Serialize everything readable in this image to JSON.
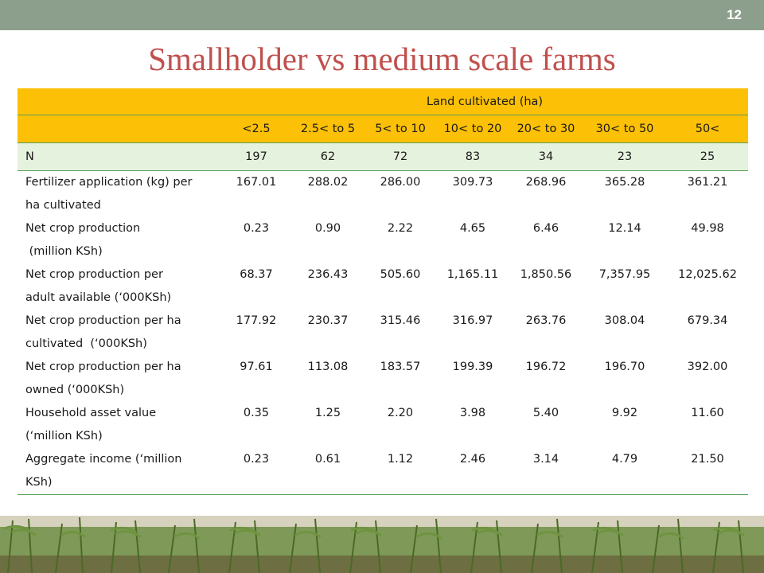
{
  "slide_number": "12",
  "title": "Smallholder vs medium scale farms",
  "table": {
    "group_header": "Land cultivated (ha)",
    "columns": [
      "<2.5",
      "2.5< to 5",
      "5< to 10",
      "10< to 20",
      "20< to 30",
      "30< to 50",
      "50<"
    ],
    "n_row": {
      "label": "N",
      "values": [
        "197",
        "62",
        "72",
        "83",
        "34",
        "23",
        "25"
      ]
    },
    "rows": [
      {
        "label_line1": "Fertilizer application (kg) per",
        "label_line2": "ha cultivated",
        "values": [
          "167.01",
          "288.02",
          "286.00",
          "309.73",
          "268.96",
          "365.28",
          "361.21"
        ]
      },
      {
        "label_line1": "Net crop production",
        "label_line2": " (million KSh)",
        "values": [
          "0.23",
          "0.90",
          "2.22",
          "4.65",
          "6.46",
          "12.14",
          "49.98"
        ]
      },
      {
        "label_line1": "Net crop production per",
        "label_line2": "adult available (‘000KSh)",
        "values": [
          "68.37",
          "236.43",
          "505.60",
          "1,165.11",
          "1,850.56",
          "7,357.95",
          "12,025.62"
        ]
      },
      {
        "label_line1": "Net crop production per ha",
        "label_line2": "cultivated  (‘000KSh)",
        "values": [
          "177.92",
          "230.37",
          "315.46",
          "316.97",
          "263.76",
          "308.04",
          "679.34"
        ]
      },
      {
        "label_line1": "Net crop production per ha",
        "label_line2": "owned (‘000KSh)",
        "values": [
          "97.61",
          "113.08",
          "183.57",
          "199.39",
          "196.72",
          "196.70",
          "392.00"
        ]
      },
      {
        "label_line1": "Household asset value",
        "label_line2": "(‘million KSh)",
        "values": [
          "0.35",
          "1.25",
          "2.20",
          "3.98",
          "5.40",
          "9.92",
          "11.60"
        ]
      },
      {
        "label_line1": "Aggregate income (‘million",
        "label_line2": "KSh)",
        "values": [
          "0.23",
          "0.61",
          "1.12",
          "2.46",
          "3.14",
          "4.79",
          "21.50"
        ]
      }
    ]
  }
}
